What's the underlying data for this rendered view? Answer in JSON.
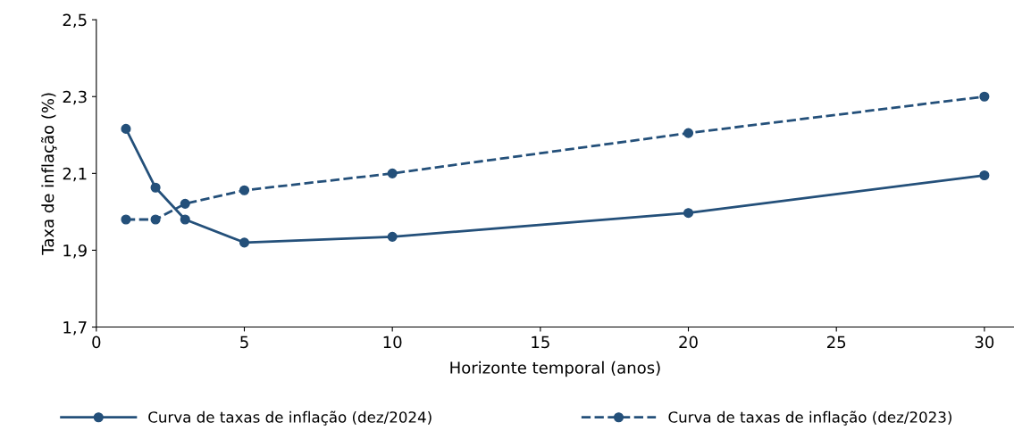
{
  "chart_data": {
    "type": "line",
    "xlabel": "Horizonte temporal (anos)",
    "ylabel": "Taxa de inflação (%)",
    "x": [
      1,
      2,
      3,
      5,
      10,
      20,
      30
    ],
    "series": [
      {
        "name": "Curva de taxas de inflação (dez/2024)",
        "color": "#24507a",
        "line_style": "solid",
        "values": [
          2.216,
          2.063,
          1.98,
          1.92,
          1.935,
          1.997,
          2.095
        ]
      },
      {
        "name": "Curva de taxas de inflação (dez/2023)",
        "color": "#24507a",
        "line_style": "dashed",
        "values": [
          1.98,
          1.98,
          2.021,
          2.056,
          2.1,
          2.205,
          2.3
        ]
      }
    ],
    "xlim": [
      0,
      31
    ],
    "xticks": [
      0,
      5,
      10,
      15,
      20,
      25,
      30
    ],
    "ylim": [
      1.7,
      2.5
    ],
    "yticks": [
      {
        "value": 1.7,
        "label": "1,7"
      },
      {
        "value": 1.9,
        "label": "1,9"
      },
      {
        "value": 2.1,
        "label": "2,1"
      },
      {
        "value": 2.3,
        "label": "2,3"
      },
      {
        "value": 2.5,
        "label": "2,5"
      }
    ],
    "marker": "circle",
    "grid": false,
    "legend": "bottom"
  }
}
